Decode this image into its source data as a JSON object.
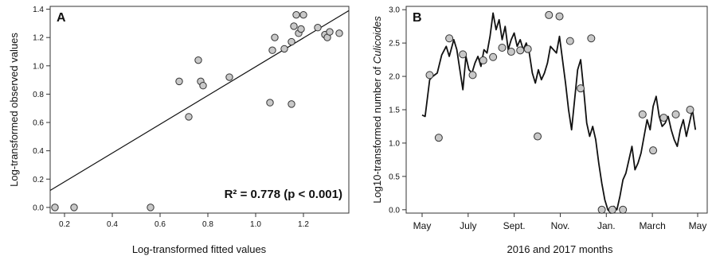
{
  "chart_data": [
    {
      "type": "scatter",
      "panel": "A",
      "xlabel": "Log-transformed fitted values",
      "ylabel": "Log-transformed observed values",
      "xlim": [
        0.14,
        1.39
      ],
      "ylim": [
        -0.04,
        1.42
      ],
      "xticks": [
        0.2,
        0.4,
        0.6,
        0.8,
        1.0,
        1.2
      ],
      "xtick_labels": [
        "0.2",
        "0.4",
        "0.6",
        "0.8",
        "1.0",
        "1.2"
      ],
      "yticks": [
        0.0,
        0.2,
        0.4,
        0.6,
        0.8,
        1.0,
        1.2,
        1.4
      ],
      "ytick_labels": [
        "0.0",
        "0.2",
        "0.4",
        "0.6",
        "0.8",
        "1.0",
        "1.2",
        "1.4"
      ],
      "annotation": "R² = 0.778 (p < 0.001)",
      "fit_line": {
        "x": [
          0.14,
          1.39
        ],
        "y": [
          0.12,
          1.39
        ]
      },
      "points": [
        {
          "x": 0.16,
          "y": 0.0
        },
        {
          "x": 0.24,
          "y": 0.0
        },
        {
          "x": 0.56,
          "y": 0.0
        },
        {
          "x": 0.68,
          "y": 0.89
        },
        {
          "x": 0.72,
          "y": 0.64
        },
        {
          "x": 0.76,
          "y": 1.04
        },
        {
          "x": 0.77,
          "y": 0.89
        },
        {
          "x": 0.78,
          "y": 0.86
        },
        {
          "x": 0.89,
          "y": 0.92
        },
        {
          "x": 1.06,
          "y": 0.74
        },
        {
          "x": 1.07,
          "y": 1.11
        },
        {
          "x": 1.08,
          "y": 1.2
        },
        {
          "x": 1.12,
          "y": 1.12
        },
        {
          "x": 1.15,
          "y": 0.73
        },
        {
          "x": 1.15,
          "y": 1.17
        },
        {
          "x": 1.16,
          "y": 1.28
        },
        {
          "x": 1.17,
          "y": 1.36
        },
        {
          "x": 1.18,
          "y": 1.23
        },
        {
          "x": 1.19,
          "y": 1.26
        },
        {
          "x": 1.2,
          "y": 1.36
        },
        {
          "x": 1.26,
          "y": 1.27
        },
        {
          "x": 1.29,
          "y": 1.22
        },
        {
          "x": 1.3,
          "y": 1.2
        },
        {
          "x": 1.31,
          "y": 1.24
        },
        {
          "x": 1.35,
          "y": 1.23
        }
      ]
    },
    {
      "type": "line",
      "panel": "B",
      "xlabel": "2016 and 2017 months",
      "ylabel_prefix": "Log10-transformed number of ",
      "ylabel_italic": "Culicoides",
      "xlim": [
        0,
        365
      ],
      "ylim": [
        -0.05,
        3.05
      ],
      "xticks": [
        0,
        61,
        122,
        183,
        244,
        305,
        365
      ],
      "xtick_labels": [
        "May",
        "July",
        "Sept.",
        "Nov.",
        "Jan.",
        "March",
        "May"
      ],
      "yticks": [
        0.0,
        0.5,
        1.0,
        1.5,
        2.0,
        2.5,
        3.0
      ],
      "ytick_labels": [
        "0.0",
        "0.5",
        "1.0",
        "1.5",
        "2.0",
        "2.5",
        "3.0"
      ],
      "line": {
        "x": [
          0,
          4,
          10,
          14,
          20,
          26,
          32,
          36,
          42,
          46,
          50,
          54,
          58,
          62,
          66,
          70,
          74,
          78,
          82,
          86,
          90,
          94,
          98,
          102,
          106,
          110,
          114,
          118,
          122,
          126,
          130,
          134,
          138,
          142,
          146,
          150,
          154,
          158,
          162,
          166,
          170,
          174,
          178,
          182,
          186,
          190,
          194,
          198,
          202,
          206,
          210,
          214,
          218,
          222,
          226,
          230,
          234,
          238,
          242,
          246,
          250,
          254,
          258,
          262,
          266,
          270,
          274,
          278,
          282,
          286,
          290,
          294,
          298,
          302,
          306,
          310,
          314,
          318,
          322,
          326,
          330,
          334,
          338,
          342,
          346,
          350,
          354,
          358,
          362
        ],
        "y": [
          1.42,
          1.4,
          1.95,
          2.0,
          2.05,
          2.32,
          2.45,
          2.3,
          2.55,
          2.4,
          2.1,
          1.8,
          2.3,
          2.1,
          2.05,
          2.2,
          2.3,
          2.15,
          2.4,
          2.35,
          2.6,
          2.95,
          2.7,
          2.85,
          2.55,
          2.75,
          2.4,
          2.55,
          2.65,
          2.45,
          2.55,
          2.4,
          2.5,
          2.35,
          2.05,
          1.9,
          2.1,
          1.95,
          2.05,
          2.2,
          2.45,
          2.4,
          2.35,
          2.6,
          2.25,
          1.9,
          1.5,
          1.2,
          1.65,
          2.1,
          2.25,
          1.8,
          1.3,
          1.1,
          1.25,
          1.05,
          0.7,
          0.4,
          0.15,
          0.0,
          -0.05,
          0.05,
          0.0,
          0.2,
          0.45,
          0.55,
          0.75,
          0.95,
          0.6,
          0.7,
          0.85,
          1.1,
          1.35,
          1.2,
          1.55,
          1.7,
          1.4,
          1.25,
          1.3,
          1.4,
          1.2,
          1.05,
          0.95,
          1.2,
          1.35,
          1.1,
          1.3,
          1.5,
          1.2
        ]
      },
      "points": [
        {
          "x": 10,
          "y": 2.02
        },
        {
          "x": 22,
          "y": 1.08
        },
        {
          "x": 36,
          "y": 2.57
        },
        {
          "x": 54,
          "y": 2.33
        },
        {
          "x": 67,
          "y": 2.02
        },
        {
          "x": 81,
          "y": 2.24
        },
        {
          "x": 94,
          "y": 2.29
        },
        {
          "x": 106,
          "y": 2.43
        },
        {
          "x": 118,
          "y": 2.37
        },
        {
          "x": 130,
          "y": 2.39
        },
        {
          "x": 140,
          "y": 2.41
        },
        {
          "x": 153,
          "y": 1.1
        },
        {
          "x": 168,
          "y": 2.92
        },
        {
          "x": 182,
          "y": 2.9
        },
        {
          "x": 196,
          "y": 2.53
        },
        {
          "x": 210,
          "y": 1.82
        },
        {
          "x": 224,
          "y": 2.57
        },
        {
          "x": 238,
          "y": 0.0
        },
        {
          "x": 252,
          "y": 0.0
        },
        {
          "x": 266,
          "y": 0.0
        },
        {
          "x": 292,
          "y": 1.43
        },
        {
          "x": 306,
          "y": 0.89
        },
        {
          "x": 320,
          "y": 1.38
        },
        {
          "x": 336,
          "y": 1.43
        },
        {
          "x": 355,
          "y": 1.5
        }
      ]
    }
  ]
}
